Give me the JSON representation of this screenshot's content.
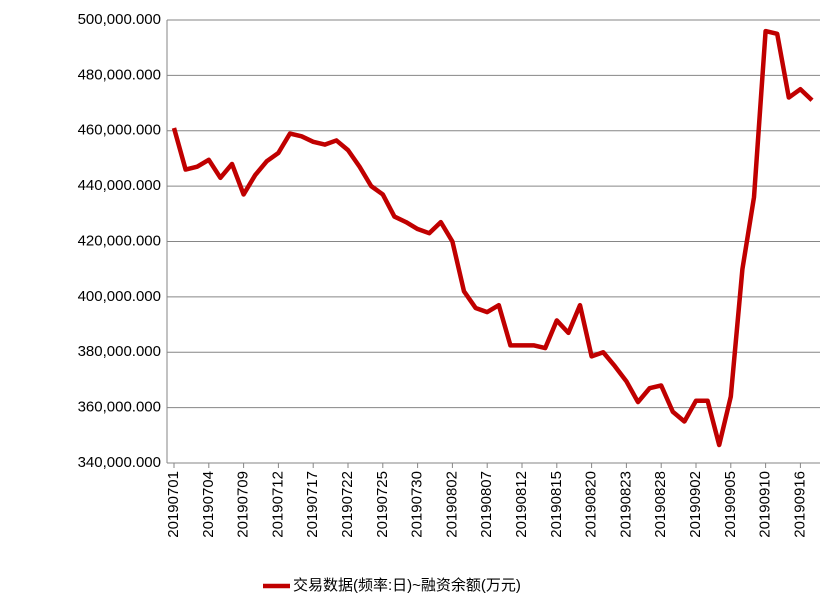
{
  "chart_data": {
    "type": "line",
    "categories": [
      "20190701",
      null,
      null,
      "20190704",
      null,
      null,
      "20190709",
      null,
      null,
      "20190712",
      null,
      null,
      "20190717",
      null,
      null,
      "20190722",
      null,
      null,
      "20190725",
      null,
      null,
      "20190730",
      null,
      null,
      "20190802",
      null,
      null,
      "20190807",
      null,
      null,
      "20190812",
      null,
      null,
      "20190815",
      null,
      null,
      "20190820",
      null,
      null,
      "20190823",
      null,
      null,
      "20190828",
      null,
      null,
      "20190902",
      null,
      null,
      "20190905",
      null,
      null,
      "20190910",
      null,
      null,
      "20190916",
      null
    ],
    "series": [
      {
        "name": "交易数据(频率:日)~融资余额(万元)",
        "color": "#c00000",
        "values": [
          461000,
          446000,
          447000,
          449500,
          443000,
          448000,
          437000,
          444000,
          449000,
          452000,
          459000,
          458000,
          456000,
          455000,
          456500,
          453000,
          447000,
          440000,
          437000,
          429000,
          427000,
          424500,
          423000,
          427000,
          420000,
          402000,
          396000,
          394500,
          397000,
          382500,
          382500,
          382500,
          381500,
          391500,
          387000,
          397000,
          378500,
          380000,
          375000,
          369500,
          362000,
          367000,
          368000,
          358500,
          355000,
          362500,
          362500,
          346500,
          364000,
          410000,
          436000,
          496000,
          495000,
          472000,
          475000,
          471000
        ]
      }
    ],
    "ylim": [
      340000,
      500000
    ],
    "yticks": [
      {
        "value": 340000,
        "label": "340,000.000"
      },
      {
        "value": 360000,
        "label": "360,000.000"
      },
      {
        "value": 380000,
        "label": "380,000.000"
      },
      {
        "value": 400000,
        "label": "400,000.000"
      },
      {
        "value": 420000,
        "label": "420,000.000"
      },
      {
        "value": 440000,
        "label": "440,000.000"
      },
      {
        "value": 460000,
        "label": "460,000.000"
      },
      {
        "value": 480000,
        "label": "480,000.000"
      },
      {
        "value": 500000,
        "label": "500,000.000"
      }
    ],
    "grid": true
  }
}
